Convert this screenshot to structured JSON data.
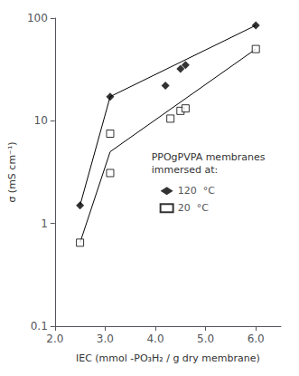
{
  "chart_data": {
    "type": "scatter",
    "log": "y",
    "grid": false,
    "legend": "right",
    "xlabel": "IEC (mmol -PO₃H₂ / g dry membrane)",
    "ylabel": "σ (mS cm⁻¹)",
    "xlim": [
      2.0,
      6.5
    ],
    "ylim": [
      0.1,
      100
    ],
    "xticks": [
      {
        "value": 2.0,
        "label": "2.0"
      },
      {
        "value": 3.0,
        "label": "3.0"
      },
      {
        "value": 4.0,
        "label": "4.0"
      },
      {
        "value": 5.0,
        "label": "5.0"
      },
      {
        "value": 6.0,
        "label": "6.0"
      }
    ],
    "yticks": [
      0.1,
      1,
      10,
      100
    ],
    "annotations": [
      {
        "text": "PPOgPVPA membranes\nimmersed at:"
      }
    ],
    "series": [
      {
        "type": "line",
        "color": "black",
        "x": [
          2.5,
          3.1,
          6.0
        ],
        "values": [
          1.5,
          17.2,
          85.0
        ]
      },
      {
        "type": "line",
        "color": "black",
        "x": [
          2.5,
          3.1,
          6.0
        ],
        "values": [
          0.65,
          5.0,
          50.0
        ]
      },
      {
        "type": "scatter",
        "name": "120  °C",
        "color": "black",
        "marker": "diamond",
        "x": [
          2.5,
          3.1,
          4.2,
          4.5,
          4.6,
          6.0
        ],
        "values": [
          1.5,
          17.2,
          22.0,
          32.0,
          35.0,
          85.0
        ]
      },
      {
        "type": "scatter",
        "name": "20  °C",
        "color": "black",
        "marker": "open_square",
        "x": [
          2.5,
          3.1,
          3.1,
          4.3,
          4.5,
          4.6,
          6.0
        ],
        "values": [
          0.65,
          3.1,
          7.5,
          10.5,
          12.5,
          13.2,
          50.0
        ]
      }
    ]
  }
}
